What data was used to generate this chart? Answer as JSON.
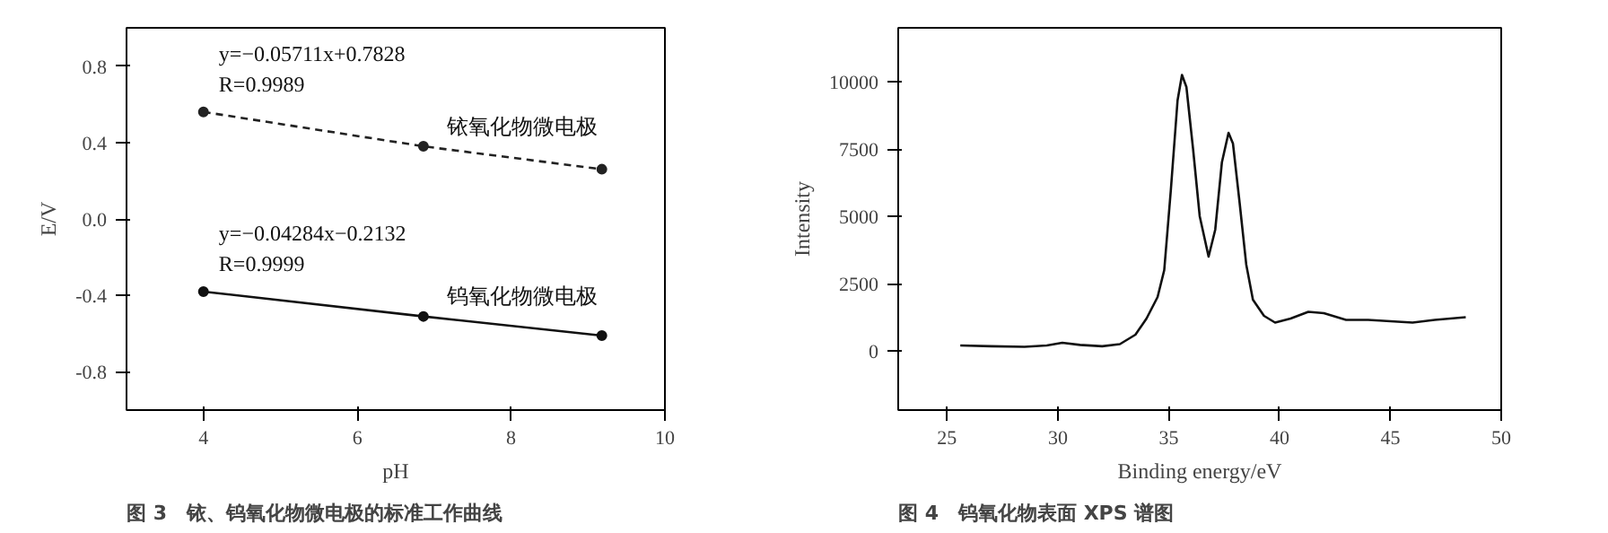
{
  "chart_data": [
    {
      "type": "line",
      "title": "图 3　铱、钨氧化物微电极的标准工作曲线",
      "xlabel": "pH",
      "ylabel": "E/V",
      "xlim": [
        3,
        10
      ],
      "xticks": [
        4,
        6,
        8,
        10
      ],
      "ylim": [
        -1.0,
        1.0
      ],
      "yticks": [
        {
          "value": 0.8,
          "label": "0.8"
        },
        {
          "value": 0.4,
          "label": "0.4"
        },
        {
          "value": 0.0,
          "label": "0.0"
        },
        {
          "value": -0.4,
          "label": "-0.4"
        },
        {
          "value": -0.8,
          "label": "-0.8"
        }
      ],
      "x": [
        4,
        6.86,
        9.18
      ],
      "marker": "circle",
      "grid": false,
      "legend": false,
      "series": [
        {
          "name": "铱氧化物微电极",
          "color": "#222222",
          "line_style": "dashed",
          "values": [
            0.56,
            0.38,
            0.26
          ]
        },
        {
          "name": "钨氧化物微电极",
          "color": "#111111",
          "line_style": "solid",
          "values": [
            -0.38,
            -0.51,
            -0.61
          ]
        }
      ],
      "annotations": [
        "y=−0.05711x+0.7828",
        "R=0.9989",
        "y=−0.04284x−0.2132",
        "R=0.9999"
      ]
    },
    {
      "type": "line",
      "title": "图 4　钨氧化物表面 XPS 谱图",
      "xlabel": "Binding energy/eV",
      "ylabel": "Intensity",
      "xlim": [
        22.8,
        50
      ],
      "xticks": [
        25,
        30,
        35,
        40,
        45,
        50
      ],
      "ylim": [
        -2200,
        12000
      ],
      "yticks": [
        0,
        2500,
        5000,
        7500,
        10000
      ],
      "grid": false,
      "legend": false,
      "marker": "none",
      "x": [
        25.6,
        27,
        28.5,
        29.5,
        30.2,
        31,
        32,
        32.8,
        33.5,
        34,
        34.5,
        34.8,
        35.1,
        35.4,
        35.6,
        35.8,
        36.1,
        36.4,
        36.8,
        37.1,
        37.4,
        37.7,
        37.9,
        38.2,
        38.5,
        38.8,
        39.3,
        39.8,
        40.5,
        41.3,
        42,
        43,
        44,
        45,
        46,
        47,
        48.4
      ],
      "series": [
        {
          "color": "#111111",
          "values": [
            200,
            170,
            150,
            200,
            300,
            220,
            170,
            250,
            600,
            1200,
            2000,
            3000,
            6000,
            9300,
            10250,
            9800,
            7500,
            5000,
            3500,
            4500,
            7000,
            8100,
            7700,
            5500,
            3200,
            1900,
            1300,
            1050,
            1200,
            1450,
            1400,
            1150,
            1150,
            1100,
            1050,
            1150,
            1250
          ]
        }
      ]
    }
  ]
}
